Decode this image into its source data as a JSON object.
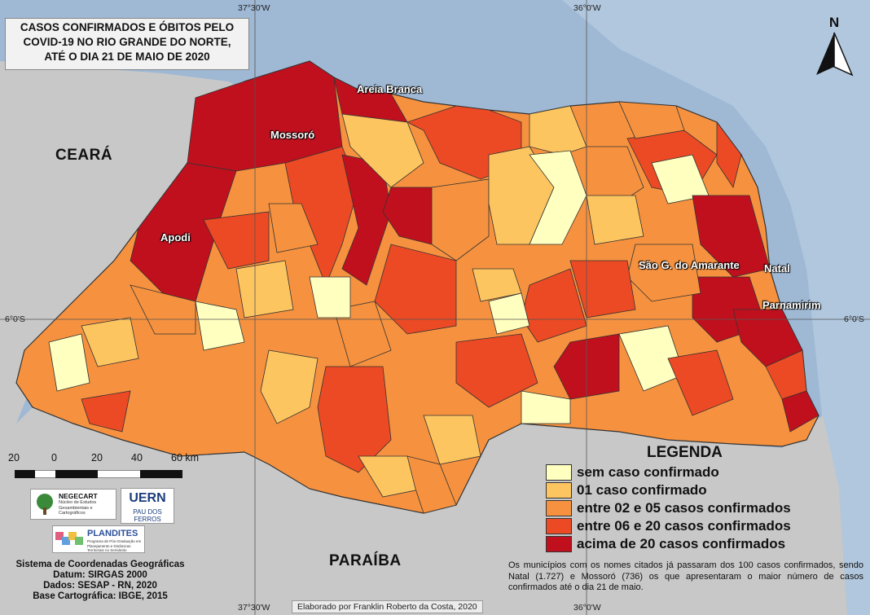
{
  "title": "CASOS CONFIRMADOS E ÓBITOS PELO COVID-19 NO RIO GRANDE DO NORTE, ATÉ O DIA 21 DE MAIO DE 2020",
  "title_lines": [
    "CASOS CONFIRMADOS E ÓBITOS PELO",
    "COVID-19 NO RIO GRANDE DO NORTE,",
    "ATÉ O DIA 21 DE MAIO DE 2020"
  ],
  "coordinates": {
    "top_left": "37°30'W",
    "top_right": "36°0'W",
    "bottom_left": "37°30'W",
    "bottom_right": "36°0'W",
    "left": "6°0'S",
    "right": "6°0'S"
  },
  "regions": {
    "ceara": "CEARÁ",
    "paraiba": "PARAÍBA"
  },
  "cities": {
    "areia_branca": "Areia Branca",
    "mossoro": "Mossoró",
    "apodi": "Apodi",
    "sao_goncalo": "São G. do Amarante",
    "natal": "Natal",
    "parnamirim": "Parnamirim"
  },
  "north_label": "N",
  "legend": {
    "title": "LEGENDA",
    "items": [
      {
        "label": "sem caso confirmado",
        "color": "#ffffc0"
      },
      {
        "label": "01 caso confirmado",
        "color": "#fdc560"
      },
      {
        "label": "entre 02 e 05 casos confirmados",
        "color": "#f6923f"
      },
      {
        "label": "entre 06 e 20 casos confirmados",
        "color": "#ec4a24"
      },
      {
        "label": "acima de 20 casos confirmados",
        "color": "#c0101e"
      }
    ]
  },
  "note": "Os municípios com os nomes citados já passaram dos 100 casos confirmados, sendo Natal (1.727) e Mossoró (736) os que apresentaram o maior número de casos confirmados até o dia 21 de maio.",
  "scale": {
    "labels": [
      "20",
      "0",
      "20",
      "40",
      "60 km"
    ]
  },
  "logos": {
    "negecart": "NEGECART",
    "negecart_sub": "Núcleo de Estudos Geoambientais e Cartográficos",
    "uern": "UERN",
    "uern_sub": "PAU DOS FERROS",
    "plandites": "PLANDITES",
    "plandites_sub": "Programa de Pós-Graduação em Planejamento e Dinâmicas Territoriais no Semiárido"
  },
  "info_lines": [
    "Sistema de Coordenadas Geográficas",
    "Datum: SIRGAS 2000",
    "Dados: SESAP - RN, 2020",
    "Base Cartográfica: IBGE, 2015"
  ],
  "credit": "Elaborado por Franklin Roberto da Costa, 2020",
  "colors": {
    "sea": "#9fb8d4",
    "land": "#c8c8c8",
    "grid": "#666666"
  }
}
